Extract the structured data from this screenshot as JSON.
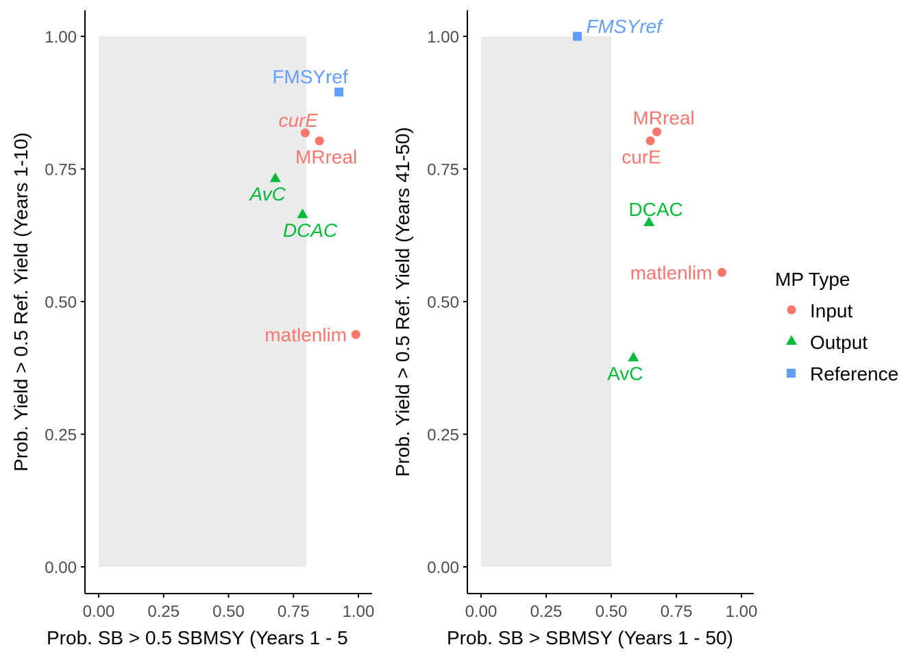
{
  "chart_data": [
    {
      "type": "scatter",
      "title": "",
      "xlabel": "Prob. SB > 0.5 SBMSY (Years 1 - 5",
      "ylabel": "Prob. Yield > 0.5 Ref. Yield (Years 1-10)",
      "xlim": [
        0,
        1
      ],
      "ylim": [
        0,
        1
      ],
      "xticks": [
        "0.00",
        "0.25",
        "0.50",
        "0.75",
        "1.00"
      ],
      "yticks": [
        "0.00",
        "0.25",
        "0.50",
        "0.75",
        "1.00"
      ],
      "shaded_region": {
        "x": [
          0,
          0.8
        ],
        "y": [
          0,
          1
        ]
      },
      "points": [
        {
          "label": "FMSYref",
          "type": "Reference",
          "x": 0.925,
          "y": 0.895,
          "italic": false
        },
        {
          "label": "curE",
          "type": "Input",
          "x": 0.795,
          "y": 0.818,
          "italic": true
        },
        {
          "label": "MRreal",
          "type": "Input",
          "x": 0.85,
          "y": 0.803,
          "italic": false
        },
        {
          "label": "AvC",
          "type": "Output",
          "x": 0.68,
          "y": 0.733,
          "italic": true
        },
        {
          "label": "DCAC",
          "type": "Output",
          "x": 0.785,
          "y": 0.665,
          "italic": true
        },
        {
          "label": "matlenlim",
          "type": "Input",
          "x": 0.99,
          "y": 0.438,
          "italic": false
        }
      ]
    },
    {
      "type": "scatter",
      "title": "",
      "xlabel": "Prob. SB > SBMSY (Years 1 - 50)",
      "ylabel": "Prob. Yield > 0.5 Ref. Yield (Years 41-50)",
      "xlim": [
        0,
        1
      ],
      "ylim": [
        0,
        1
      ],
      "xticks": [
        "0.00",
        "0.25",
        "0.50",
        "0.75",
        "1.00"
      ],
      "yticks": [
        "0.00",
        "0.25",
        "0.50",
        "0.75",
        "1.00"
      ],
      "shaded_region": {
        "x": [
          0,
          0.5
        ],
        "y": [
          0,
          1
        ]
      },
      "points": [
        {
          "label": "FMSYref",
          "type": "Reference",
          "x": 0.37,
          "y": 1.0,
          "italic": true
        },
        {
          "label": "MRreal",
          "type": "Input",
          "x": 0.675,
          "y": 0.82,
          "italic": false
        },
        {
          "label": "curE",
          "type": "Input",
          "x": 0.65,
          "y": 0.803,
          "italic": false
        },
        {
          "label": "DCAC",
          "type": "Output",
          "x": 0.645,
          "y": 0.65,
          "italic": false
        },
        {
          "label": "matlenlim",
          "type": "Input",
          "x": 0.925,
          "y": 0.555,
          "italic": false
        },
        {
          "label": "AvC",
          "type": "Output",
          "x": 0.585,
          "y": 0.395,
          "italic": false
        }
      ]
    }
  ],
  "legend": {
    "title": "MP Type",
    "items": [
      {
        "label": "Input",
        "shape": "circle",
        "color": "#F8766D"
      },
      {
        "label": "Output",
        "shape": "triangle",
        "color": "#00BA38"
      },
      {
        "label": "Reference",
        "shape": "square",
        "color": "#619CFF"
      }
    ]
  },
  "colors": {
    "Input": "#F8766D",
    "Output": "#00BA38",
    "Reference": "#619CFF",
    "shade": "#EBEBEB",
    "axis": "#000000",
    "tick_text": "#4D4D4D"
  }
}
